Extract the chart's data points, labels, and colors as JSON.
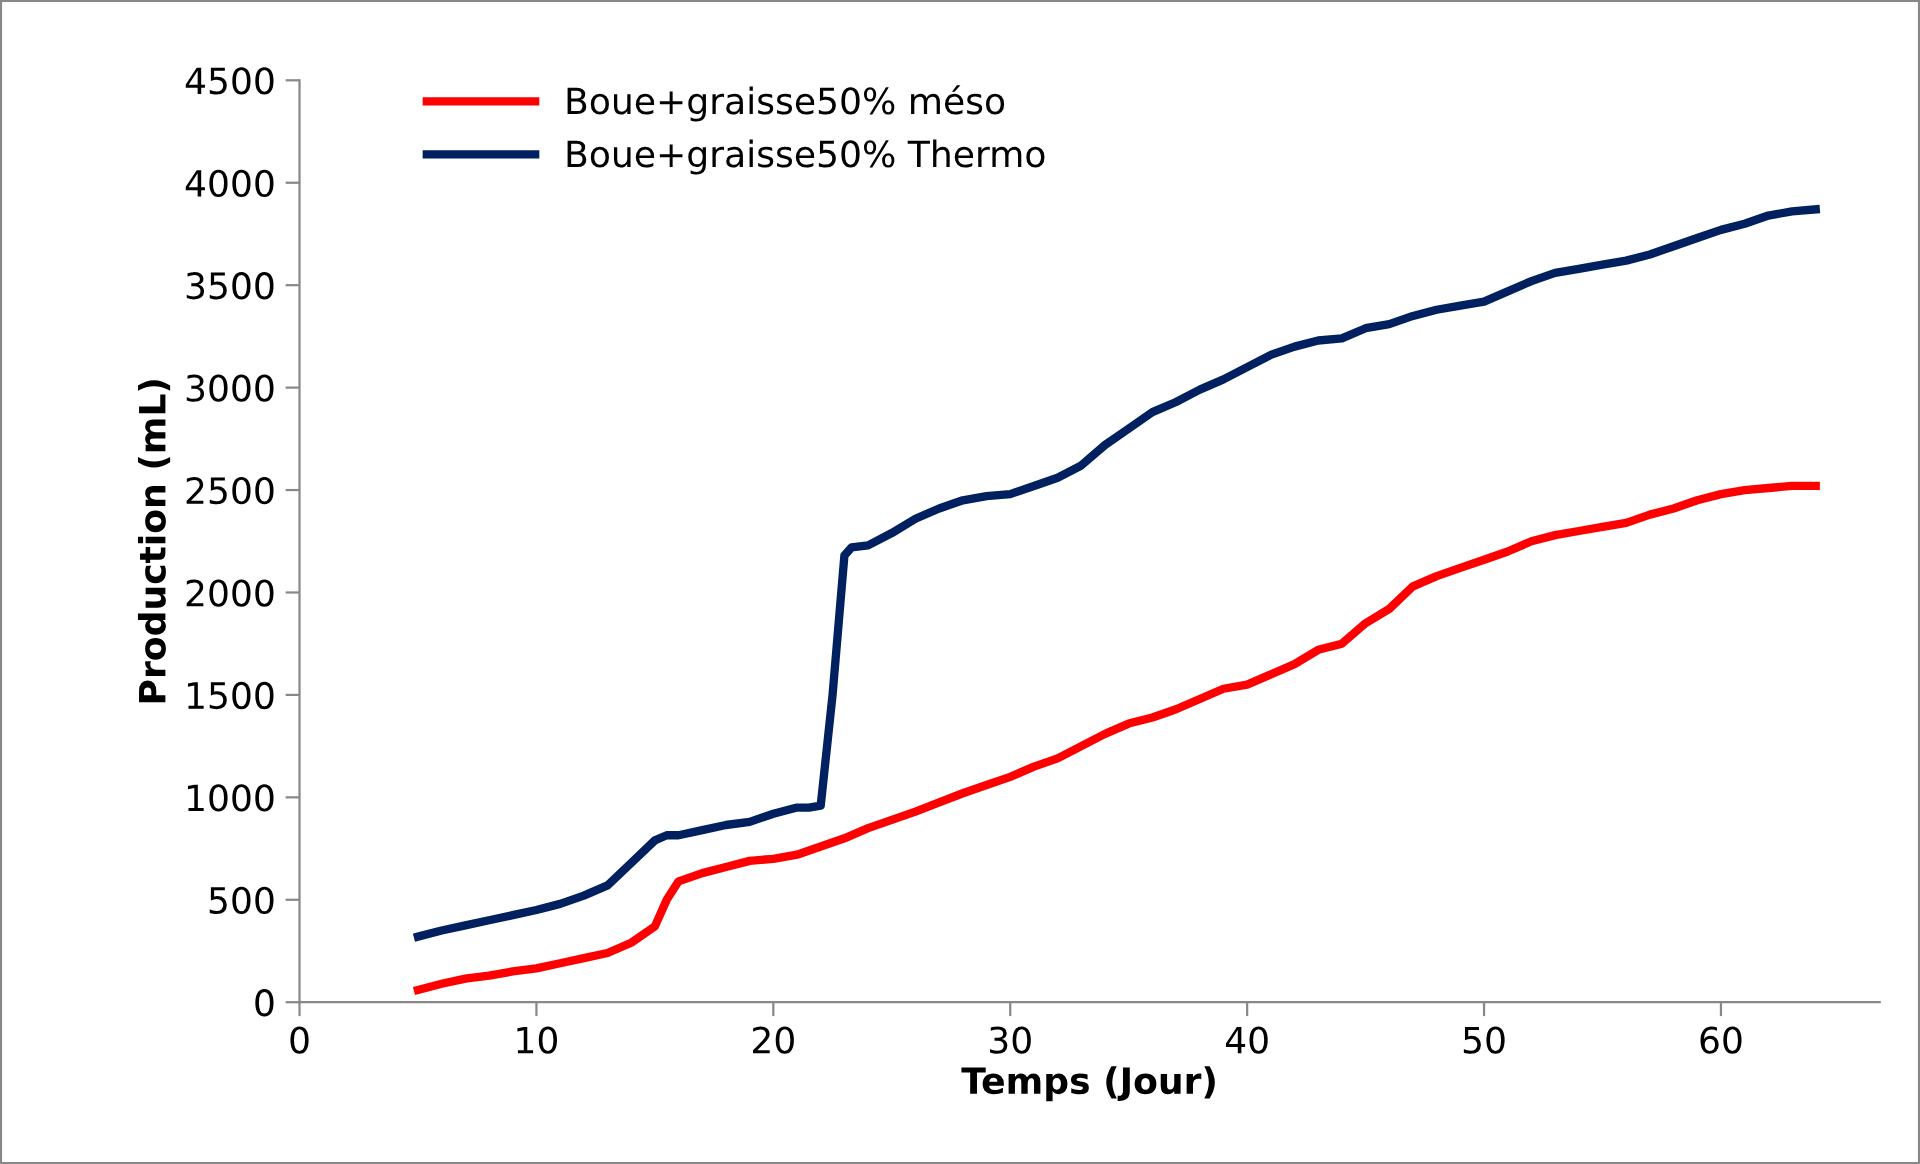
{
  "chart_data": {
    "type": "line",
    "xlabel": "Temps (Jour)",
    "ylabel": "Production (mL)",
    "xlim": [
      0,
      66.7
    ],
    "xticks": [
      0,
      10,
      20,
      30,
      40,
      50,
      60
    ],
    "ylim": [
      0,
      4500
    ],
    "yticks": [
      0,
      500,
      1000,
      1500,
      2000,
      2500,
      3000,
      3500,
      4000,
      4500
    ],
    "grid": false,
    "legend": "top left",
    "marker": "none",
    "line_style": "solid",
    "series": [
      {
        "name": "Boue+graisse50% méso",
        "color": "#ff0000",
        "x": [
          5,
          6,
          7,
          8,
          9,
          10,
          11,
          12,
          13,
          14,
          15,
          15.5,
          16,
          17,
          18,
          19,
          20,
          21,
          22,
          23,
          24,
          25,
          26,
          27,
          28,
          29,
          30,
          31,
          32,
          33,
          34,
          35,
          36,
          37,
          38,
          39,
          40,
          41,
          42,
          43,
          44,
          45,
          46,
          47,
          48,
          49,
          50,
          51,
          52,
          53,
          54,
          55,
          56,
          57,
          58,
          59,
          60,
          61,
          62,
          63,
          64
        ],
        "values": [
          60,
          90,
          115,
          130,
          150,
          165,
          190,
          215,
          240,
          290,
          370,
          500,
          590,
          630,
          660,
          690,
          700,
          720,
          760,
          800,
          850,
          890,
          930,
          975,
          1020,
          1060,
          1100,
          1150,
          1190,
          1250,
          1310,
          1360,
          1390,
          1430,
          1480,
          1530,
          1550,
          1600,
          1650,
          1720,
          1750,
          1850,
          1920,
          2030,
          2080,
          2120,
          2160,
          2200,
          2250,
          2280,
          2300,
          2320,
          2340,
          2380,
          2410,
          2450,
          2480,
          2500,
          2510,
          2520,
          2520
        ]
      },
      {
        "name": "Boue+graisse50% Thermo",
        "color": "#002060",
        "x": [
          5,
          6,
          7,
          8,
          9,
          10,
          11,
          12,
          13,
          14,
          15,
          15.5,
          16,
          17,
          18,
          19,
          20,
          21,
          21.5,
          22,
          22.5,
          23,
          23.3,
          24,
          25,
          26,
          27,
          28,
          29,
          30,
          31,
          32,
          33,
          34,
          35,
          36,
          37,
          38,
          39,
          40,
          41,
          42,
          43,
          44,
          45,
          46,
          47,
          48,
          49,
          50,
          51,
          52,
          53,
          54,
          55,
          56,
          57,
          58,
          59,
          60,
          61,
          62,
          63,
          64
        ],
        "values": [
          320,
          350,
          375,
          400,
          425,
          450,
          480,
          520,
          570,
          680,
          790,
          815,
          815,
          840,
          865,
          880,
          920,
          950,
          950,
          960,
          1500,
          2180,
          2220,
          2230,
          2290,
          2360,
          2410,
          2450,
          2470,
          2480,
          2520,
          2560,
          2620,
          2720,
          2800,
          2880,
          2930,
          2990,
          3040,
          3100,
          3160,
          3200,
          3230,
          3240,
          3290,
          3310,
          3350,
          3380,
          3400,
          3420,
          3470,
          3520,
          3560,
          3580,
          3600,
          3620,
          3650,
          3690,
          3730,
          3770,
          3800,
          3840,
          3860,
          3870
        ]
      }
    ]
  }
}
